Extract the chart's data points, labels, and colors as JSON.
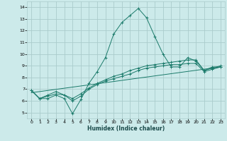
{
  "xlabel": "Humidex (Indice chaleur)",
  "bg_color": "#cceaea",
  "grid_color": "#aacccc",
  "line_color": "#1a7a6a",
  "xlim": [
    -0.5,
    23.5
  ],
  "ylim": [
    4.5,
    14.5
  ],
  "xticks": [
    0,
    1,
    2,
    3,
    4,
    5,
    6,
    7,
    8,
    9,
    10,
    11,
    12,
    13,
    14,
    15,
    16,
    17,
    18,
    19,
    20,
    21,
    22,
    23
  ],
  "yticks": [
    5,
    6,
    7,
    8,
    9,
    10,
    11,
    12,
    13,
    14
  ],
  "line1_x": [
    0,
    1,
    2,
    3,
    4,
    5,
    6,
    7,
    8,
    9,
    10,
    11,
    12,
    13,
    14,
    15,
    16,
    17,
    18,
    19,
    20,
    21,
    22,
    23
  ],
  "line1_y": [
    6.9,
    6.2,
    6.2,
    6.5,
    6.2,
    4.9,
    6.1,
    7.5,
    8.5,
    9.7,
    11.7,
    12.7,
    13.3,
    13.9,
    13.1,
    11.5,
    10.0,
    8.9,
    8.9,
    9.7,
    9.4,
    8.6,
    8.9,
    8.9
  ],
  "line2_x": [
    0,
    1,
    2,
    3,
    4,
    5,
    6,
    7,
    8,
    9,
    10,
    11,
    12,
    13,
    14,
    15,
    16,
    17,
    18,
    19,
    20,
    21,
    22,
    23
  ],
  "line2_y": [
    6.9,
    6.2,
    6.5,
    6.8,
    6.5,
    6.2,
    6.6,
    7.1,
    7.5,
    7.8,
    8.1,
    8.3,
    8.6,
    8.8,
    9.0,
    9.1,
    9.2,
    9.3,
    9.4,
    9.5,
    9.5,
    8.6,
    8.8,
    9.0
  ],
  "line3_x": [
    0,
    1,
    2,
    3,
    4,
    5,
    6,
    7,
    8,
    9,
    10,
    11,
    12,
    13,
    14,
    15,
    16,
    17,
    18,
    19,
    20,
    21,
    22,
    23
  ],
  "line3_y": [
    6.9,
    6.2,
    6.4,
    6.6,
    6.5,
    6.0,
    6.4,
    7.0,
    7.4,
    7.7,
    7.9,
    8.1,
    8.3,
    8.6,
    8.8,
    8.9,
    9.0,
    9.1,
    9.1,
    9.2,
    9.2,
    8.5,
    8.7,
    8.9
  ],
  "line4_x": [
    0,
    23
  ],
  "line4_y": [
    6.7,
    8.9
  ]
}
